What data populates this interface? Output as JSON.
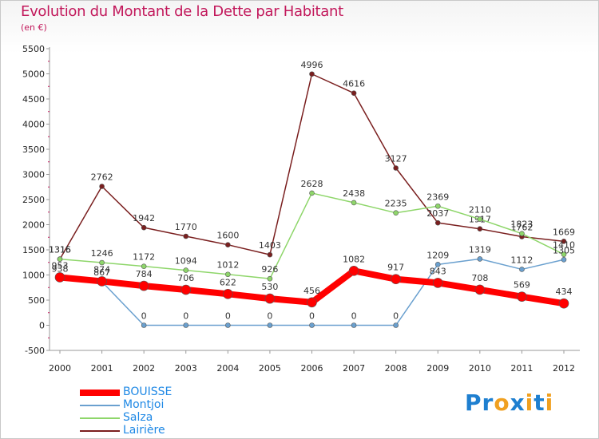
{
  "chart_data": {
    "type": "line",
    "title": "Evolution du Montant de la Dette par Habitant",
    "subtitle": "(en €)",
    "x": [
      "2000",
      "2001",
      "2002",
      "2003",
      "2004",
      "2005",
      "2006",
      "2007",
      "2008",
      "2009",
      "2010",
      "2011",
      "2012"
    ],
    "ylim": [
      -500,
      5500
    ],
    "yticks": [
      -500,
      0,
      500,
      1000,
      1500,
      2000,
      2500,
      3000,
      3500,
      4000,
      4500,
      5000,
      5500
    ],
    "grid": false,
    "legend_position": "bottom-left",
    "series": [
      {
        "name": "Lairière",
        "color": "#7a1f1f",
        "width": 1.5,
        "values": [
          1316,
          2762,
          1942,
          1770,
          1600,
          1403,
          4996,
          4616,
          3127,
          2037,
          1917,
          1762,
          1669
        ],
        "labels": [
          "1316",
          "2762",
          "1942",
          "1770",
          "1600",
          "1403",
          "4996",
          "4616",
          "3127",
          "2037",
          "1917",
          "1762",
          "1669"
        ]
      },
      {
        "name": "Salza",
        "color": "#8ed66a",
        "width": 1.5,
        "values": [
          1315,
          1246,
          1172,
          1094,
          1012,
          926,
          2628,
          2438,
          2235,
          2369,
          2110,
          1823,
          1410
        ],
        "labels": [
          "1315",
          "1246",
          "1172",
          "1094",
          "1012",
          "926",
          "2628",
          "2438",
          "2235",
          "2369",
          "2110",
          "1823",
          "1410"
        ]
      },
      {
        "name": "Montjoi",
        "color": "#6aa0cf",
        "width": 1.5,
        "values": [
          938,
          867,
          0,
          0,
          0,
          0,
          0,
          0,
          0,
          1209,
          1319,
          1112,
          1305
        ],
        "labels": [
          "938",
          "867",
          "0",
          "0",
          "0",
          "0",
          "0",
          "0",
          "0",
          "1209",
          "1319",
          "1112",
          "1305"
        ]
      },
      {
        "name": "BOUISSE",
        "color": "#ff0000",
        "width": 8,
        "values": [
          953,
          874,
          784,
          706,
          622,
          530,
          456,
          1082,
          917,
          843,
          708,
          569,
          434
        ],
        "labels": [
          "953",
          "874",
          "784",
          "706",
          "622",
          "530",
          "456",
          "1082",
          "917",
          "843",
          "708",
          "569",
          "434"
        ]
      }
    ]
  },
  "legend": {
    "items": [
      {
        "name": "BOUISSE",
        "color": "#ff0000",
        "thickness": 8
      },
      {
        "name": "Montjoi",
        "color": "#6aa0cf",
        "thickness": 2
      },
      {
        "name": "Salza",
        "color": "#8ed66a",
        "thickness": 2
      },
      {
        "name": "Lairière",
        "color": "#7a1f1f",
        "thickness": 2
      }
    ]
  },
  "brand": {
    "letters": [
      {
        "ch": "P",
        "color": "#1e7fd0"
      },
      {
        "ch": "r",
        "color": "#1e7fd0"
      },
      {
        "ch": "o",
        "color": "#f0a020"
      },
      {
        "ch": "x",
        "color": "#1e7fd0"
      },
      {
        "ch": "i",
        "color": "#f0a020"
      },
      {
        "ch": "t",
        "color": "#1e7fd0"
      },
      {
        "ch": "i",
        "color": "#f0a020"
      }
    ]
  }
}
